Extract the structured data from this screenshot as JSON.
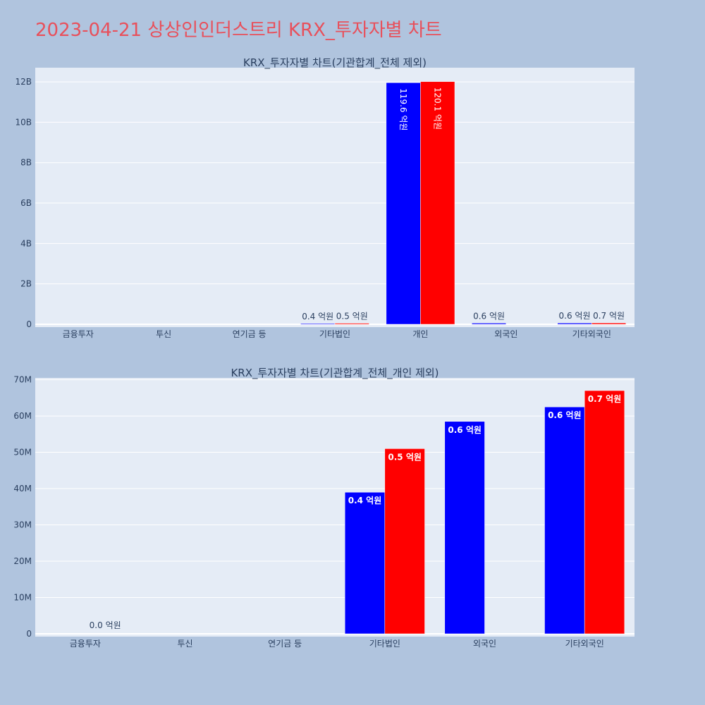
{
  "page": {
    "title": "2023-04-21 상상인인더스트리 KRX_투자자별 차트"
  },
  "colors": {
    "background": "#b0c4de",
    "plot_bg": "#e5ecf6",
    "grid": "#ffffff",
    "series_a": "#0000ff",
    "series_b": "#ff0000",
    "title": "#e8505b",
    "text": "#2a3f5f"
  },
  "chart_data": [
    {
      "type": "bar",
      "title": "KRX_투자자별 차트(기관합계_전체 제외)",
      "categories": [
        "금융투자",
        "투신",
        "연기금 등",
        "기타법인",
        "개인",
        "외국인",
        "기타외국인"
      ],
      "ylim": [
        0,
        12700000000
      ],
      "yticks": [
        0,
        2000000000,
        4000000000,
        6000000000,
        8000000000,
        10000000000,
        12000000000
      ],
      "yticklabels": [
        "0",
        "2B",
        "4B",
        "6B",
        "8B",
        "10B",
        "12B"
      ],
      "grid": true,
      "series": [
        {
          "color": "#0000ff",
          "values": [
            0,
            0,
            0,
            39000000,
            11960000000,
            58500000,
            62500000
          ],
          "labels": [
            "",
            "",
            "",
            "0.4 억원",
            "119.6 억원",
            "0.6 억원",
            "0.6 억원"
          ]
        },
        {
          "color": "#ff0000",
          "values": [
            0,
            0,
            0,
            51000000,
            12010000000,
            0,
            67000000
          ],
          "labels": [
            "",
            "",
            "",
            "0.5 억원",
            "120.1 억원",
            "",
            "0.7 억원"
          ]
        }
      ]
    },
    {
      "type": "bar",
      "title": "KRX_투자자별 차트(기관합계_전체_개인 제외)",
      "categories": [
        "금융투자",
        "투신",
        "연기금 등",
        "기타법인",
        "외국인",
        "기타외국인"
      ],
      "ylim": [
        0,
        70500000
      ],
      "yticks": [
        0,
        10000000,
        20000000,
        30000000,
        40000000,
        50000000,
        60000000,
        70000000
      ],
      "yticklabels": [
        "0",
        "10M",
        "20M",
        "30M",
        "40M",
        "50M",
        "60M",
        "70M"
      ],
      "grid": true,
      "series": [
        {
          "color": "#0000ff",
          "values": [
            0,
            0,
            0,
            39000000,
            58500000,
            62500000
          ],
          "labels": [
            "",
            "",
            "",
            "0.4 억원",
            "0.6 억원",
            "0.6 억원"
          ]
        },
        {
          "color": "#ff0000",
          "values": [
            0,
            0,
            0,
            51000000,
            0,
            67000000
          ],
          "labels": [
            "0.0 억원",
            "",
            "",
            "0.5 억원",
            "",
            "0.7 억원"
          ]
        }
      ]
    }
  ]
}
